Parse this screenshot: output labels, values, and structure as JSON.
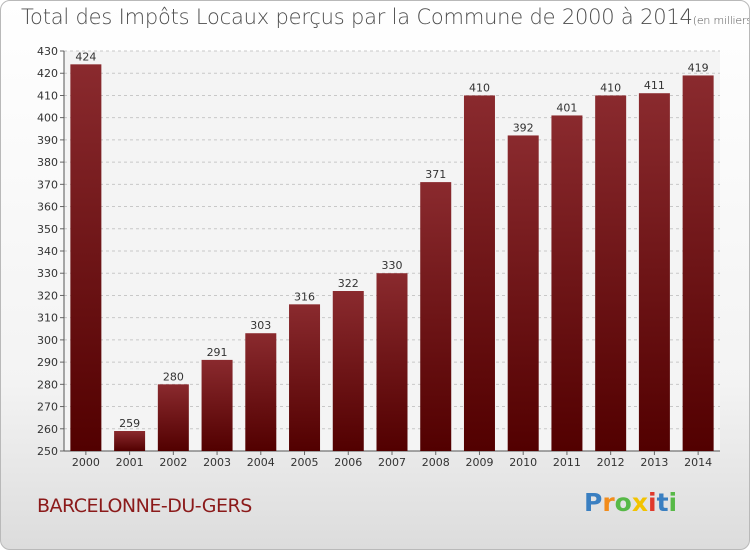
{
  "chart_data": {
    "type": "bar",
    "title": "Total des Impôts Locaux perçus par la Commune de 2000 à 2014",
    "unit": "(en milliers d'€)",
    "categories": [
      "2000",
      "2001",
      "2002",
      "2003",
      "2004",
      "2005",
      "2006",
      "2007",
      "2008",
      "2009",
      "2010",
      "2011",
      "2012",
      "2013",
      "2014"
    ],
    "values": [
      424,
      259,
      280,
      291,
      303,
      316,
      322,
      330,
      371,
      410,
      392,
      401,
      410,
      411,
      419
    ],
    "ylim": [
      250,
      430
    ],
    "yticks": [
      "250",
      "260",
      "270",
      "280",
      "290",
      "300",
      "310",
      "320",
      "330",
      "340",
      "350",
      "360",
      "370",
      "380",
      "390",
      "400",
      "410",
      "420",
      "430"
    ],
    "xlabel": "",
    "ylabel": "",
    "grid": "y",
    "bar_color_top": "#8a2a2e",
    "bar_color_bottom": "#520000"
  },
  "footer": {
    "commune": "BARCELONNE-DU-GERS",
    "logo": [
      "P",
      "r",
      "o",
      "x",
      "i",
      "t",
      "i"
    ],
    "logo_colors": [
      "#3a7fc1",
      "#f28c1b",
      "#57b947",
      "#f2c300",
      "#e0392b",
      "#3a7fc1",
      "#57b947"
    ]
  }
}
